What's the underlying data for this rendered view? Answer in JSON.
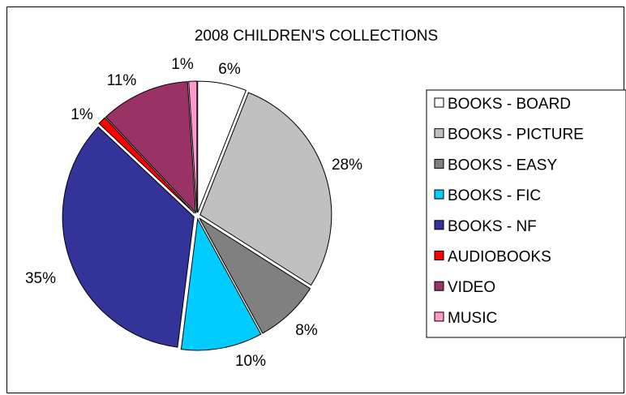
{
  "chart_data": {
    "type": "pie",
    "title": "2008 CHILDREN'S COLLECTIONS",
    "slices": [
      {
        "label": "BOOKS - BOARD",
        "value": 6,
        "value_label": "6%",
        "color": "#ffffff"
      },
      {
        "label": "BOOKS - PICTURE",
        "value": 28,
        "value_label": "28%",
        "color": "#c0c0c0"
      },
      {
        "label": "BOOKS - EASY",
        "value": 8,
        "value_label": "8%",
        "color": "#808080"
      },
      {
        "label": "BOOKS - FIC",
        "value": 10,
        "value_label": "10%",
        "color": "#00ccff"
      },
      {
        "label": "BOOKS - NF",
        "value": 35,
        "value_label": "35%",
        "color": "#333399"
      },
      {
        "label": "AUDIOBOOKS",
        "value": 1,
        "value_label": "1%",
        "color": "#ff0000"
      },
      {
        "label": "VIDEO",
        "value": 11,
        "value_label": "11%",
        "color": "#993366"
      },
      {
        "label": "MUSIC",
        "value": 1,
        "value_label": "1%",
        "color": "#ff99cc"
      }
    ],
    "legend_position": "right"
  }
}
